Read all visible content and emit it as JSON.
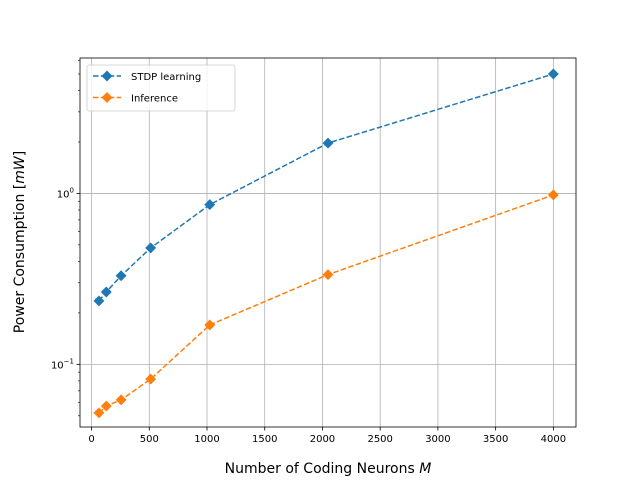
{
  "chart_data": {
    "type": "line",
    "xlabel": "Number of Coding Neurons M",
    "xlabel_main": "Number of Coding Neurons ",
    "xlabel_var": "M",
    "ylabel": "Power Consumption [mW]",
    "ylabel_main": "Power Consumption [",
    "ylabel_var": "mW",
    "ylabel_end": "]",
    "xscale": "linear",
    "yscale": "log",
    "xlim": [
      -100,
      4196
    ],
    "ylim": [
      0.043,
      6.2
    ],
    "grid": true,
    "legend_position": "upper-left",
    "xticks": [
      0,
      500,
      1000,
      1500,
      2000,
      2500,
      3000,
      3500,
      4000
    ],
    "xtick_labels": [
      "0",
      "500",
      "1000",
      "1500",
      "2000",
      "2500",
      "3000",
      "3500",
      "4000"
    ],
    "yticks": [
      0.1,
      1
    ],
    "ytick_labels": [
      {
        "base": "10",
        "exp": "−1"
      },
      {
        "base": "10",
        "exp": "0"
      }
    ],
    "series": [
      {
        "name": "STDP learning",
        "color": "#1f77b4",
        "marker": "diamond",
        "linestyle": "dashed",
        "x": [
          64,
          128,
          256,
          512,
          1024,
          2048,
          4000
        ],
        "y": [
          0.235,
          0.265,
          0.33,
          0.48,
          0.86,
          1.97,
          5.0
        ]
      },
      {
        "name": "Inference",
        "color": "#ff7f0e",
        "marker": "diamond",
        "linestyle": "dashed",
        "x": [
          64,
          128,
          256,
          512,
          1024,
          2048,
          4000
        ],
        "y": [
          0.052,
          0.057,
          0.062,
          0.082,
          0.17,
          0.335,
          0.98
        ]
      }
    ]
  }
}
